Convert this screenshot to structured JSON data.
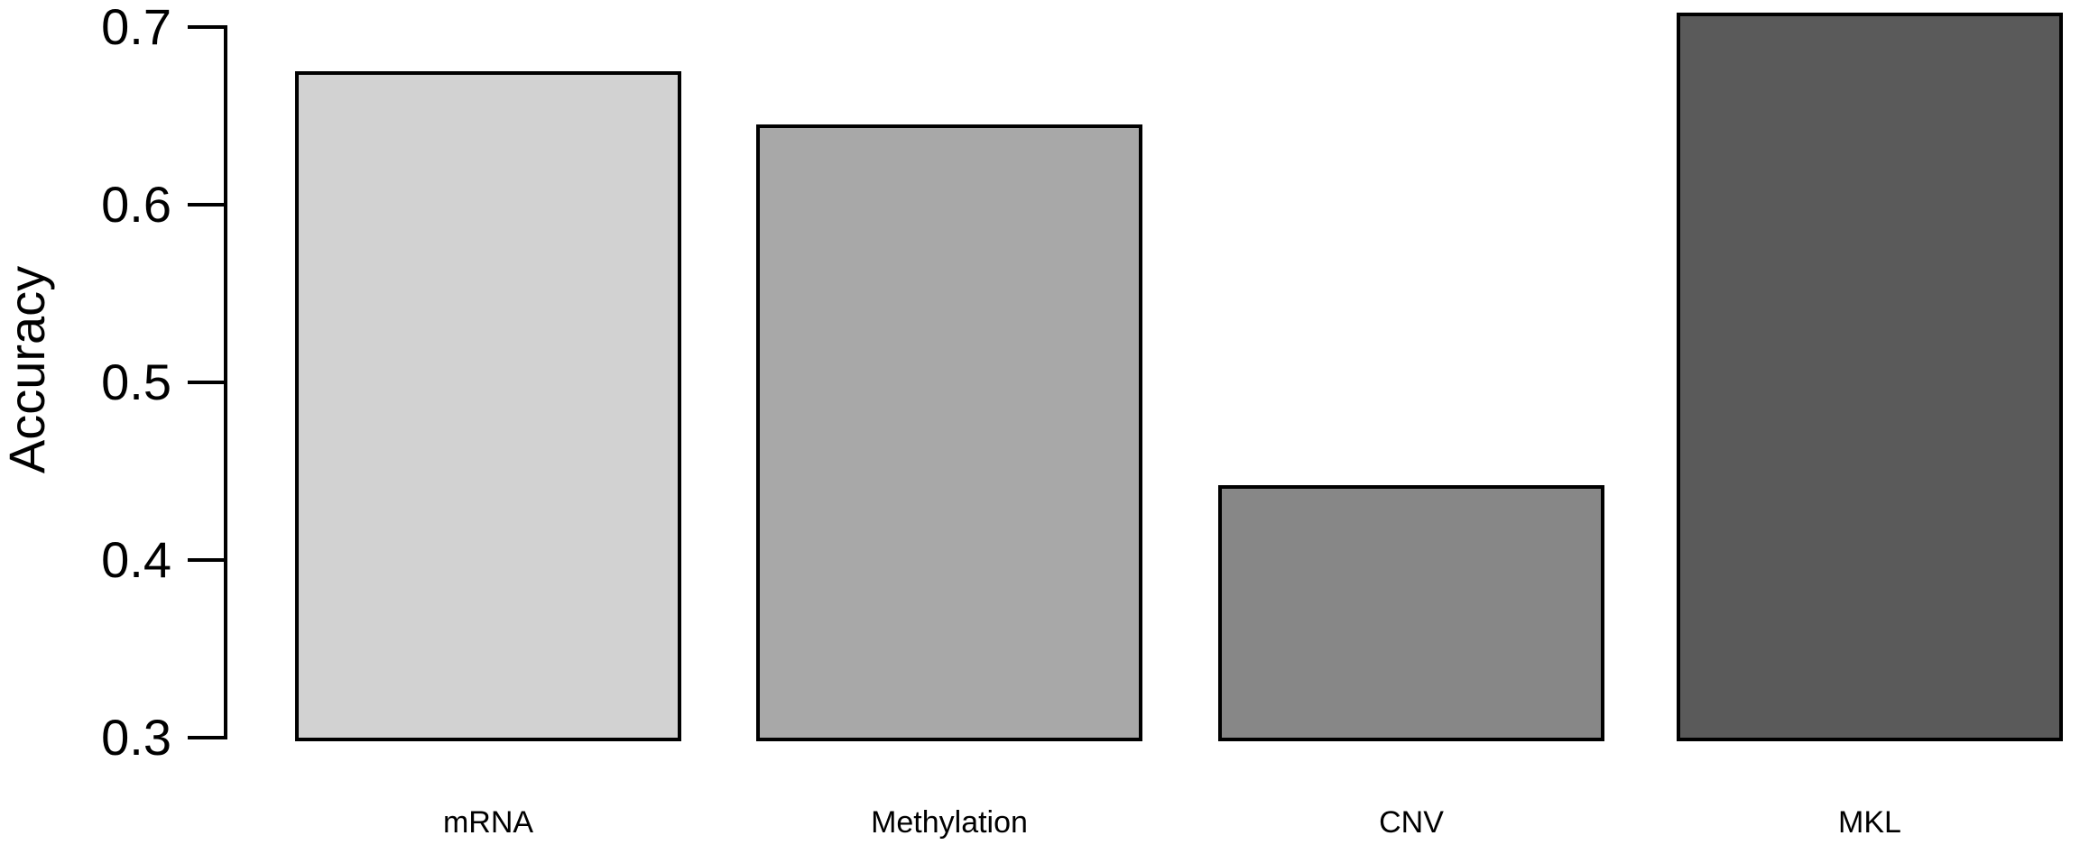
{
  "figure": {
    "background_color": "#ffffff",
    "text_color": "#000000"
  },
  "chart_data": {
    "type": "bar",
    "title": "",
    "xlabel": "",
    "ylabel": "Accuracy",
    "categories": [
      "mRNA",
      "Methylation",
      "CNV",
      "MKL"
    ],
    "values": [
      0.675,
      0.645,
      0.442,
      0.708
    ],
    "bar_colors": [
      "#d2d2d2",
      "#a8a8a8",
      "#878787",
      "#5a5a5a"
    ],
    "bar_border_color": "#000000",
    "axis_color": "#000000",
    "ylim": [
      0.3,
      0.7
    ],
    "y_ticks": [
      {
        "value": 0.3,
        "label": "0.3"
      },
      {
        "value": 0.4,
        "label": "0.4"
      },
      {
        "value": 0.5,
        "label": "0.5"
      },
      {
        "value": 0.6,
        "label": "0.6"
      },
      {
        "value": 0.7,
        "label": "0.7"
      }
    ],
    "grid": "off",
    "legend": "none"
  }
}
